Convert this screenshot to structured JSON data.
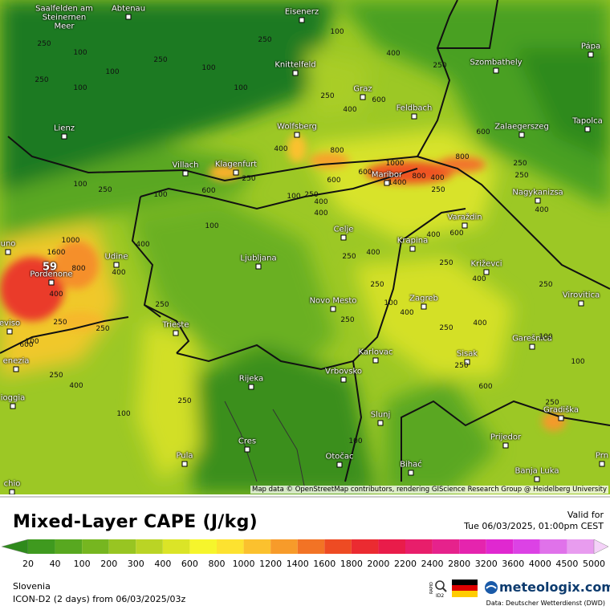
{
  "map": {
    "attribution": "Map data © OpenStreetMap contributors, rendering GIScience Research Group @ Heidelberg University",
    "max_label": "59",
    "cities": [
      "Saalfelden am Steinernen Meer",
      "Abtenau",
      "Eisenerz",
      "Knittelfeld",
      "Graz",
      "Szombathely",
      "Pápa",
      "Feldbach",
      "Lienz",
      "Wolfsberg",
      "Zalaegerszeg",
      "Tapolca",
      "Villach",
      "Klagenfurt",
      "Maribor",
      "Nagykanizsa",
      "Varaždin",
      "Celje",
      "Krapina",
      "Udine",
      "Ljubljana",
      "Križevci",
      "Pordenone",
      "Novo Mesto",
      "Zagreb",
      "Virovitica",
      "Trieste",
      "Garešnica",
      "Sisak",
      "Karlovac",
      "Vrbovsko",
      "Rijeka",
      "Gradiška",
      "Slunj",
      "Prijedor",
      "Cres",
      "Pula",
      "Otočac",
      "Bihać",
      "Banja Luka",
      "uno",
      "eviso",
      "enezia",
      "ioggia",
      "chio",
      "Prn"
    ],
    "contour_labels": [
      250,
      100,
      250,
      100,
      100,
      250,
      100,
      250,
      100,
      250,
      400,
      100,
      250,
      600,
      400,
      800,
      1000,
      600,
      800,
      1400,
      800,
      400,
      250,
      100,
      400,
      250,
      600,
      100,
      250,
      400,
      600,
      1600,
      1000,
      800,
      400,
      250,
      100,
      250,
      400,
      600,
      250,
      400,
      250,
      100,
      250,
      400,
      250,
      250,
      400,
      100,
      250,
      400,
      600,
      400,
      250,
      100,
      250,
      400,
      250,
      400,
      600,
      250,
      100,
      250,
      100,
      250,
      400,
      600,
      250,
      400,
      100,
      250,
      100
    ]
  },
  "header": {
    "title": "Mixed-Layer CAPE (J/kg)",
    "valid_label": "Valid for",
    "valid_time": "Tue 06/03/2025, 01:00pm CEST"
  },
  "legend": {
    "ticks": [
      20,
      40,
      100,
      200,
      300,
      400,
      600,
      800,
      1000,
      1200,
      1400,
      1600,
      1800,
      2000,
      2200,
      2400,
      2800,
      3200,
      3600,
      4000,
      4500,
      5000
    ],
    "colors": [
      "#2f8a1c",
      "#3f9a1f",
      "#58a820",
      "#76b620",
      "#98c522",
      "#bad425",
      "#dbe427",
      "#f6f52c",
      "#fde230",
      "#fbc12e",
      "#f79b2a",
      "#f27325",
      "#ee4b23",
      "#eb2b31",
      "#e91c4a",
      "#e81e6b",
      "#e6228c",
      "#e524ae",
      "#e028d0",
      "#dc42e5",
      "#e072ea",
      "#e89cef",
      "#f4d2f8"
    ]
  },
  "footer": {
    "region": "Slovenia",
    "model": "ICON-D2 (2 days) from 06/03/2025/03z",
    "rapid": "RAPID",
    "id2": "ID2",
    "brand": "meteologix.com",
    "source": "Data: Deutscher Wetterdienst (DWD)"
  }
}
